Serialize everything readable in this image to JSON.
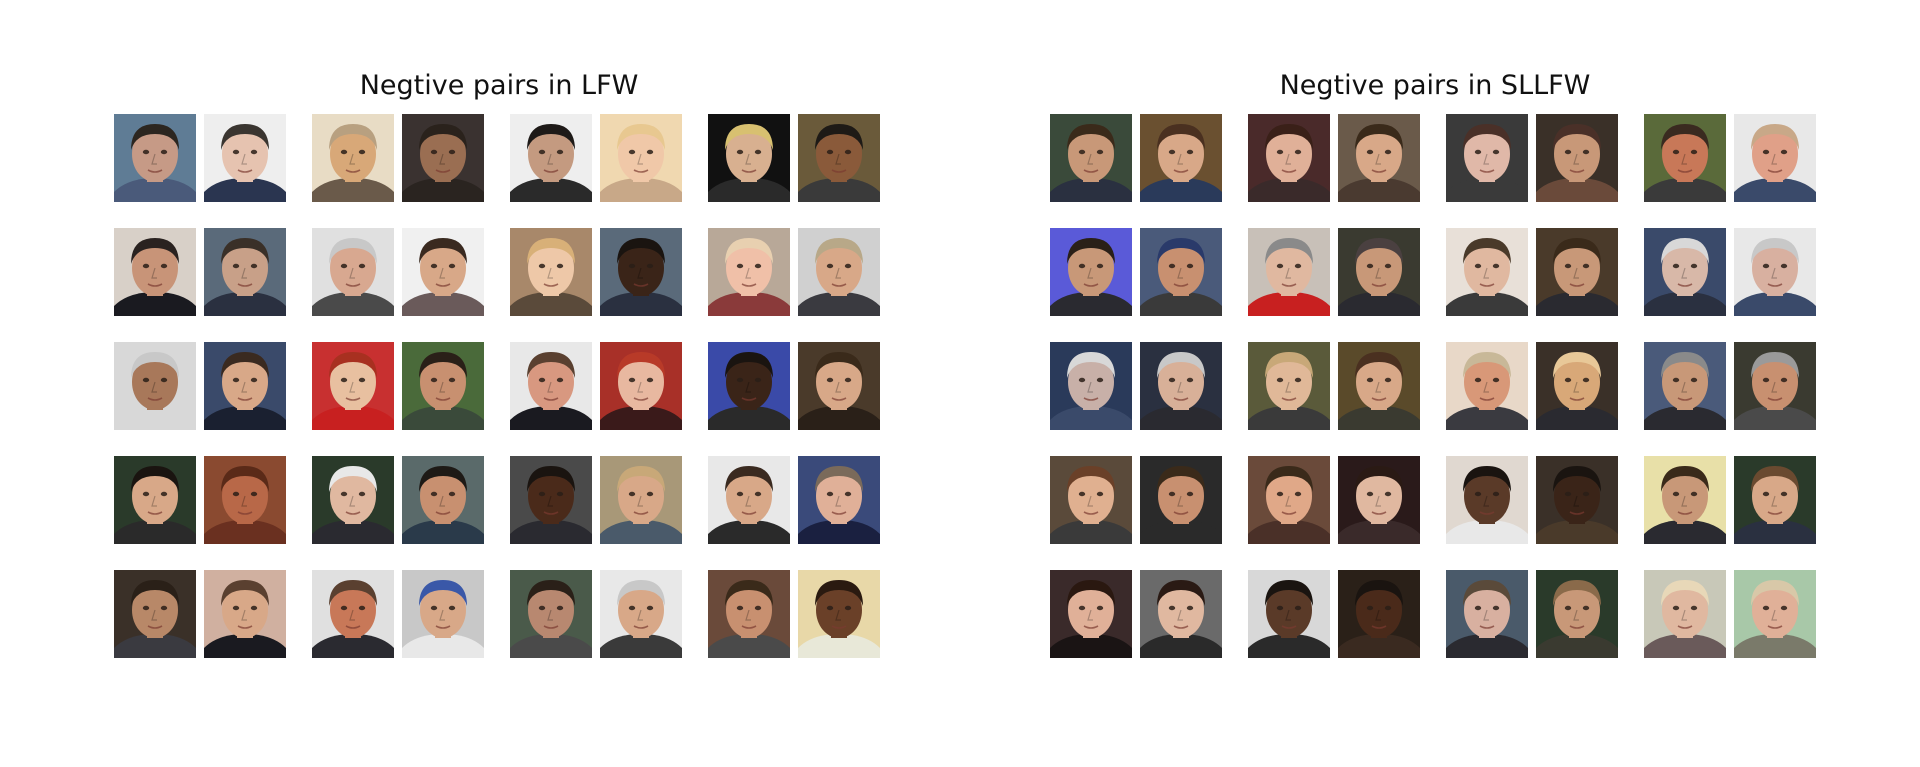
{
  "panels": [
    {
      "id": "lfw",
      "title": "Negtive pairs in LFW",
      "pairs": [
        [
          {
            "bg": "#5f7c95",
            "skin": "#c69a86",
            "hair": "#2c2620",
            "cloth": "#4a5a7a"
          },
          {
            "bg": "#eeeeee",
            "skin": "#e6c3b0",
            "hair": "#3a3530",
            "cloth": "#2a3550"
          }
        ],
        [
          {
            "bg": "#e8dcc5",
            "skin": "#d8a878",
            "hair": "#b8a080",
            "cloth": "#6a5a4a"
          },
          {
            "bg": "#3a3230",
            "skin": "#9a6e52",
            "hair": "#2a221c",
            "cloth": "#2a2420"
          }
        ],
        [
          {
            "bg": "#eeeeee",
            "skin": "#c49a80",
            "hair": "#1e1a18",
            "cloth": "#2a2a2a"
          },
          {
            "bg": "#f0d8b0",
            "skin": "#f0c8a8",
            "hair": "#e8c890",
            "cloth": "#c8a888"
          }
        ],
        [
          {
            "bg": "#111111",
            "skin": "#d8b090",
            "hair": "#d8c070",
            "cloth": "#2a2a2a"
          },
          {
            "bg": "#6a5a3a",
            "skin": "#8a5a3a",
            "hair": "#1e1a16",
            "cloth": "#3a3a3a"
          }
        ],
        [
          {
            "bg": "#d8d0c8",
            "skin": "#c89478",
            "hair": "#2a2220",
            "cloth": "#1a1a20"
          },
          {
            "bg": "#5a6a7a",
            "skin": "#c8a088",
            "hair": "#3a3028",
            "cloth": "#2a3040"
          }
        ],
        [
          {
            "bg": "#e0e0e0",
            "skin": "#d8a890",
            "hair": "#c8c8c8",
            "cloth": "#4a4a4a"
          },
          {
            "bg": "#f0f0f0",
            "skin": "#d8a888",
            "hair": "#3a2a20",
            "cloth": "#6a5a5a"
          }
        ],
        [
          {
            "bg": "#a8886a",
            "skin": "#eec8a8",
            "hair": "#d8b078",
            "cloth": "#5a4a3a"
          },
          {
            "bg": "#5a6a7a",
            "skin": "#3a2418",
            "hair": "#1a1410",
            "cloth": "#2a3040"
          }
        ],
        [
          {
            "bg": "#b8a898",
            "skin": "#f0c0a8",
            "hair": "#e8d0b0",
            "cloth": "#8a3a3a"
          },
          {
            "bg": "#d0d0d0",
            "skin": "#d8a888",
            "hair": "#b8a888",
            "cloth": "#3a3a40"
          }
        ],
        [
          {
            "bg": "#d8d8d8",
            "skin": "#a8785a",
            "hair": "#c8c8c8",
            "cloth": "#d8d8d8"
          },
          {
            "bg": "#3a4a6a",
            "skin": "#d8a888",
            "hair": "#3a2a20",
            "cloth": "#1a2030"
          }
        ],
        [
          {
            "bg": "#c83030",
            "skin": "#e8c0a0",
            "hair": "#a83020",
            "cloth": "#c82020"
          },
          {
            "bg": "#4a6a3a",
            "skin": "#c89070",
            "hair": "#2a2018",
            "cloth": "#3a4a3a"
          }
        ],
        [
          {
            "bg": "#e8e8e8",
            "skin": "#d89880",
            "hair": "#5a4030",
            "cloth": "#1a1a20"
          },
          {
            "bg": "#a83028",
            "skin": "#e8b8a0",
            "hair": "#b83a28",
            "cloth": "#3a1a1a"
          }
        ],
        [
          {
            "bg": "#3a4aa8",
            "skin": "#3a2418",
            "hair": "#1a1410",
            "cloth": "#2a2a2a"
          },
          {
            "bg": "#4a3a2a",
            "skin": "#d8a888",
            "hair": "#3a2a1a",
            "cloth": "#2a2018"
          }
        ],
        [
          {
            "bg": "#2a3a2a",
            "skin": "#d8a888",
            "hair": "#1a1410",
            "cloth": "#2a2a2a"
          },
          {
            "bg": "#8a4a30",
            "skin": "#b86848",
            "hair": "#5a2a18",
            "cloth": "#6a3020"
          }
        ],
        [
          {
            "bg": "#2a3a2a",
            "skin": "#e0b8a0",
            "hair": "#e8e8e8",
            "cloth": "#2a2a30"
          },
          {
            "bg": "#5a6a6a",
            "skin": "#c89070",
            "hair": "#1e1a16",
            "cloth": "#2a3a4a"
          }
        ],
        [
          {
            "bg": "#4a4a4a",
            "skin": "#4a2a1a",
            "hair": "#1a1410",
            "cloth": "#2a2a30"
          },
          {
            "bg": "#a89878",
            "skin": "#d8a888",
            "hair": "#c8a878",
            "cloth": "#4a5a6a"
          }
        ],
        [
          {
            "bg": "#e8e8e8",
            "skin": "#d8a888",
            "hair": "#3a2a20",
            "cloth": "#2a2a2a"
          },
          {
            "bg": "#3a4a7a",
            "skin": "#e0b098",
            "hair": "#7a6a5a",
            "cloth": "#1a2040"
          }
        ],
        [
          {
            "bg": "#3a3028",
            "skin": "#b88868",
            "hair": "#2a2018",
            "cloth": "#3a3a40"
          },
          {
            "bg": "#d0b0a0",
            "skin": "#d8a888",
            "hair": "#5a4030",
            "cloth": "#1a1a20"
          }
        ],
        [
          {
            "bg": "#e0e0e0",
            "skin": "#c87858",
            "hair": "#5a4030",
            "cloth": "#2a2a30"
          },
          {
            "bg": "#c8c8c8",
            "skin": "#d8a888",
            "hair": "#3a58a8",
            "cloth": "#e8e8e8"
          }
        ],
        [
          {
            "bg": "#4a5a4a",
            "skin": "#b88870",
            "hair": "#2a2018",
            "cloth": "#4a4a4a"
          },
          {
            "bg": "#e8e8e8",
            "skin": "#d8a888",
            "hair": "#c8c8c8",
            "cloth": "#3a3a3a"
          }
        ],
        [
          {
            "bg": "#6a4a3a",
            "skin": "#c89070",
            "hair": "#3a2a1a",
            "cloth": "#4a4a4a"
          },
          {
            "bg": "#e8d8a8",
            "skin": "#6a4028",
            "hair": "#2a1a10",
            "cloth": "#e8e8d8"
          }
        ]
      ]
    },
    {
      "id": "sllfw",
      "title": "Negtive pairs in SLLFW",
      "pairs": [
        [
          {
            "bg": "#3a4a3a",
            "skin": "#c89878",
            "hair": "#3a2a1a",
            "cloth": "#2a3040"
          },
          {
            "bg": "#6a5030",
            "skin": "#d8a888",
            "hair": "#4a3020",
            "cloth": "#2a3a5a"
          }
        ],
        [
          {
            "bg": "#4a2a2a",
            "skin": "#e0b098",
            "hair": "#3a2018",
            "cloth": "#3a2a2a"
          },
          {
            "bg": "#6a5a4a",
            "skin": "#d8a888",
            "hair": "#3a2a1a",
            "cloth": "#4a3a30"
          }
        ],
        [
          {
            "bg": "#3a3a3a",
            "skin": "#e0b8a8",
            "hair": "#4a3028",
            "cloth": "#3a3a3a"
          },
          {
            "bg": "#3a3028",
            "skin": "#c89878",
            "hair": "#4a3028",
            "cloth": "#6a4a3a"
          }
        ],
        [
          {
            "bg": "#5a6a3a",
            "skin": "#c87858",
            "hair": "#3a2a20",
            "cloth": "#3a3a3a"
          },
          {
            "bg": "#e8e8e8",
            "skin": "#e0a088",
            "hair": "#c8a888",
            "cloth": "#3a4a6a"
          }
        ],
        [
          {
            "bg": "#5a5ad8",
            "skin": "#c89878",
            "hair": "#2a2018",
            "cloth": "#2a2a30"
          },
          {
            "bg": "#4a5a7a",
            "skin": "#c89070",
            "hair": "#2a3a6a",
            "cloth": "#3a3a3a"
          }
        ],
        [
          {
            "bg": "#c8c0b8",
            "skin": "#e0b8a0",
            "hair": "#8a8a8a",
            "cloth": "#c82020"
          },
          {
            "bg": "#3a3a30",
            "skin": "#c89878",
            "hair": "#4a4040",
            "cloth": "#2a2a30"
          }
        ],
        [
          {
            "bg": "#e8e0d8",
            "skin": "#e0b8a0",
            "hair": "#4a3a2a",
            "cloth": "#3a3a3a"
          },
          {
            "bg": "#4a3a2a",
            "skin": "#c89878",
            "hair": "#3a2a1a",
            "cloth": "#2a2a30"
          }
        ],
        [
          {
            "bg": "#3a4a6a",
            "skin": "#d8b8a8",
            "hair": "#d8d8d8",
            "cloth": "#2a3040"
          },
          {
            "bg": "#e8e8e8",
            "skin": "#d8b0a0",
            "hair": "#c8c8c8",
            "cloth": "#3a4a6a"
          }
        ],
        [
          {
            "bg": "#2a3a5a",
            "skin": "#c8b0a8",
            "hair": "#d8d8d8",
            "cloth": "#3a4a6a"
          },
          {
            "bg": "#2a3040",
            "skin": "#d8b098",
            "hair": "#c8c8c8",
            "cloth": "#2a2a30"
          }
        ],
        [
          {
            "bg": "#5a5a3a",
            "skin": "#e0b898",
            "hair": "#c8a878",
            "cloth": "#3a3a3a"
          },
          {
            "bg": "#5a4a2a",
            "skin": "#d8a888",
            "hair": "#4a3020",
            "cloth": "#3a3a30"
          }
        ],
        [
          {
            "bg": "#e8d8c8",
            "skin": "#d89878",
            "hair": "#c8b898",
            "cloth": "#3a3a40"
          },
          {
            "bg": "#3a3028",
            "skin": "#d8a878",
            "hair": "#e8c898",
            "cloth": "#2a2a30"
          }
        ],
        [
          {
            "bg": "#4a5a7a",
            "skin": "#c89878",
            "hair": "#8a8a8a",
            "cloth": "#2a2a30"
          },
          {
            "bg": "#3a3a30",
            "skin": "#c89070",
            "hair": "#9a9a9a",
            "cloth": "#4a4a4a"
          }
        ],
        [
          {
            "bg": "#5a4a3a",
            "skin": "#e0b090",
            "hair": "#6a4028",
            "cloth": "#3a3a3a"
          },
          {
            "bg": "#2a2a2a",
            "skin": "#c89070",
            "hair": "#3a2a1a",
            "cloth": "#2a2a2a"
          }
        ],
        [
          {
            "bg": "#6a4a3a",
            "skin": "#e0a888",
            "hair": "#3a2a1a",
            "cloth": "#4a3028"
          },
          {
            "bg": "#2a1a1a",
            "skin": "#e0b8a0",
            "hair": "#2a1a14",
            "cloth": "#3a2a2a"
          }
        ],
        [
          {
            "bg": "#e0d8d0",
            "skin": "#5a3a28",
            "hair": "#1a1410",
            "cloth": "#e8e8e8"
          },
          {
            "bg": "#3a3028",
            "skin": "#3a2418",
            "hair": "#1a1410",
            "cloth": "#4a3a2a"
          }
        ],
        [
          {
            "bg": "#e8e0a8",
            "skin": "#c89878",
            "hair": "#3a2a1a",
            "cloth": "#2a2a30"
          },
          {
            "bg": "#2a3a2a",
            "skin": "#d8a888",
            "hair": "#6a4a30",
            "cloth": "#2a3040"
          }
        ],
        [
          {
            "bg": "#3a2a2a",
            "skin": "#e0b098",
            "hair": "#2a1810",
            "cloth": "#1a1414"
          },
          {
            "bg": "#6a6a6a",
            "skin": "#e0b8a0",
            "hair": "#2a1a14",
            "cloth": "#2a2a2a"
          }
        ],
        [
          {
            "bg": "#d8d8d8",
            "skin": "#5a3a28",
            "hair": "#1a1410",
            "cloth": "#2a2a2a"
          },
          {
            "bg": "#2a2018",
            "skin": "#4a2a1a",
            "hair": "#1a1410",
            "cloth": "#3a2a20"
          }
        ],
        [
          {
            "bg": "#4a5a6a",
            "skin": "#d8b0a0",
            "hair": "#5a4a3a",
            "cloth": "#2a2a30"
          },
          {
            "bg": "#2a3a2a",
            "skin": "#c89878",
            "hair": "#8a6a4a",
            "cloth": "#3a3a30"
          }
        ],
        [
          {
            "bg": "#c8c8b8",
            "skin": "#e0b8a0",
            "hair": "#e8d8b8",
            "cloth": "#6a5a5a"
          },
          {
            "bg": "#a8c8a8",
            "skin": "#e0b098",
            "hair": "#d8c8a8",
            "cloth": "#7a7a6a"
          }
        ]
      ]
    }
  ]
}
